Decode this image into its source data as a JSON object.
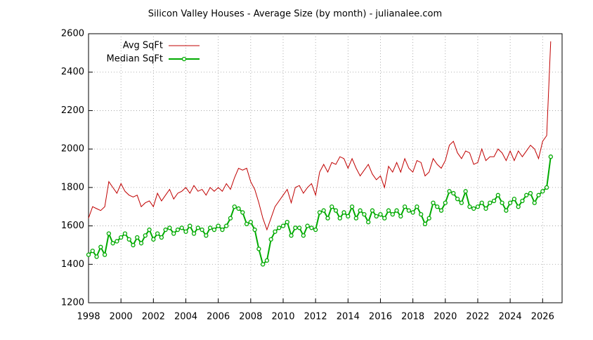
{
  "chart_data": {
    "type": "line",
    "title": "Silicon Valley Houses - Average Size (by month) - julianalee.com",
    "x": [
      1998,
      1998.25,
      1998.5,
      1998.75,
      1999,
      1999.25,
      1999.5,
      1999.75,
      2000,
      2000.25,
      2000.5,
      2000.75,
      2001,
      2001.25,
      2001.5,
      2001.75,
      2002,
      2002.25,
      2002.5,
      2002.75,
      2003,
      2003.25,
      2003.5,
      2003.75,
      2004,
      2004.25,
      2004.5,
      2004.75,
      2005,
      2005.25,
      2005.5,
      2005.75,
      2006,
      2006.25,
      2006.5,
      2006.75,
      2007,
      2007.25,
      2007.5,
      2007.75,
      2008,
      2008.25,
      2008.5,
      2008.75,
      2009,
      2009.25,
      2009.5,
      2009.75,
      2010,
      2010.25,
      2010.5,
      2010.75,
      2011,
      2011.25,
      2011.5,
      2011.75,
      2012,
      2012.25,
      2012.5,
      2012.75,
      2013,
      2013.25,
      2013.5,
      2013.75,
      2014,
      2014.25,
      2014.5,
      2014.75,
      2015,
      2015.25,
      2015.5,
      2015.75,
      2016,
      2016.25,
      2016.5,
      2016.75,
      2017,
      2017.25,
      2017.5,
      2017.75,
      2018,
      2018.25,
      2018.5,
      2018.75,
      2019,
      2019.25,
      2019.5,
      2019.75,
      2020,
      2020.25,
      2020.5,
      2020.75,
      2021,
      2021.25,
      2021.5,
      2021.75,
      2022,
      2022.25,
      2022.5,
      2022.75,
      2023,
      2023.25,
      2023.5,
      2023.75,
      2024,
      2024.25,
      2024.5,
      2024.75,
      2025,
      2025.25,
      2025.5,
      2025.75,
      2026,
      2026.25,
      2026.5
    ],
    "series": [
      {
        "name": "Avg SqFt",
        "color": "#c00000",
        "marker": false,
        "values": [
          1640,
          1700,
          1690,
          1680,
          1700,
          1830,
          1800,
          1770,
          1820,
          1780,
          1760,
          1750,
          1760,
          1700,
          1720,
          1730,
          1700,
          1770,
          1730,
          1760,
          1790,
          1740,
          1770,
          1780,
          1800,
          1770,
          1810,
          1780,
          1790,
          1760,
          1800,
          1780,
          1800,
          1780,
          1820,
          1790,
          1850,
          1900,
          1890,
          1900,
          1830,
          1790,
          1720,
          1640,
          1580,
          1640,
          1700,
          1730,
          1760,
          1790,
          1720,
          1800,
          1810,
          1770,
          1800,
          1820,
          1760,
          1880,
          1920,
          1880,
          1930,
          1920,
          1960,
          1950,
          1900,
          1950,
          1900,
          1860,
          1890,
          1920,
          1870,
          1840,
          1860,
          1800,
          1910,
          1880,
          1930,
          1880,
          1950,
          1900,
          1880,
          1940,
          1930,
          1860,
          1880,
          1950,
          1920,
          1900,
          1940,
          2020,
          2040,
          1980,
          1950,
          1990,
          1980,
          1920,
          1930,
          2000,
          1940,
          1960,
          1960,
          2000,
          1980,
          1940,
          1990,
          1940,
          1990,
          1960,
          1990,
          2020,
          2000,
          1950,
          2040,
          2070,
          2560
        ]
      },
      {
        "name": "Median SqFt",
        "color": "#00aa00",
        "marker": true,
        "values": [
          1450,
          1470,
          1440,
          1490,
          1450,
          1560,
          1510,
          1520,
          1540,
          1560,
          1530,
          1500,
          1540,
          1510,
          1550,
          1580,
          1530,
          1560,
          1540,
          1580,
          1590,
          1560,
          1580,
          1590,
          1570,
          1600,
          1560,
          1590,
          1580,
          1550,
          1590,
          1580,
          1600,
          1580,
          1600,
          1640,
          1700,
          1690,
          1670,
          1610,
          1620,
          1580,
          1480,
          1400,
          1420,
          1530,
          1570,
          1590,
          1600,
          1620,
          1550,
          1590,
          1590,
          1550,
          1600,
          1590,
          1580,
          1670,
          1680,
          1640,
          1700,
          1680,
          1640,
          1670,
          1650,
          1700,
          1640,
          1680,
          1660,
          1620,
          1680,
          1650,
          1660,
          1640,
          1680,
          1660,
          1680,
          1650,
          1700,
          1680,
          1670,
          1700,
          1660,
          1610,
          1640,
          1720,
          1700,
          1680,
          1720,
          1780,
          1770,
          1740,
          1720,
          1780,
          1700,
          1690,
          1700,
          1720,
          1690,
          1720,
          1730,
          1760,
          1720,
          1680,
          1720,
          1740,
          1700,
          1730,
          1760,
          1770,
          1720,
          1760,
          1780,
          1800,
          1960
        ]
      }
    ],
    "xlim": [
      1998,
      2027.2
    ],
    "xticks": [
      1998,
      2000,
      2002,
      2004,
      2006,
      2008,
      2010,
      2012,
      2014,
      2016,
      2018,
      2020,
      2022,
      2024,
      2026
    ],
    "ylim": [
      1200,
      2600
    ],
    "yticks": [
      1200,
      1400,
      1600,
      1800,
      2000,
      2200,
      2400,
      2600
    ],
    "grid": true,
    "legend": "top-left"
  }
}
